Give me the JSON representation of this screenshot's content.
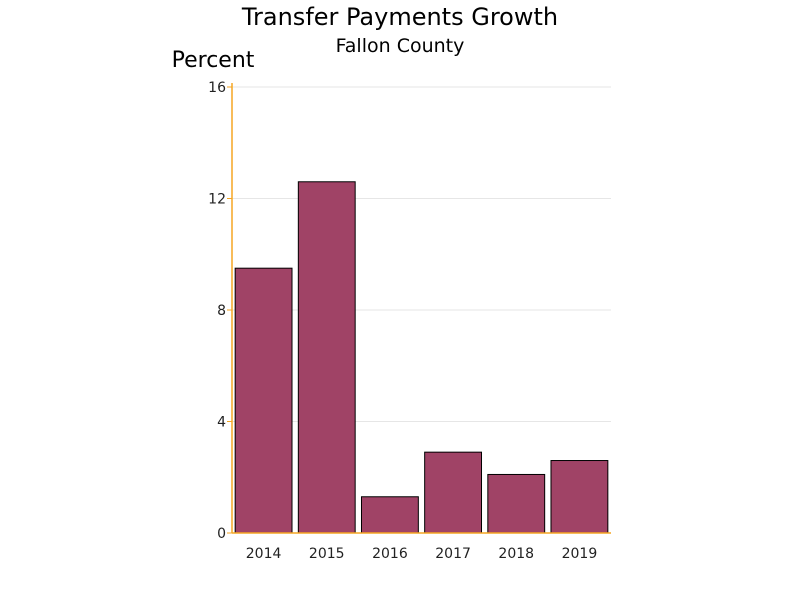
{
  "chart_data": {
    "type": "bar",
    "title": "Transfer Payments Growth",
    "subtitle": "Fallon County",
    "ylabel": "Percent",
    "xlabel": "",
    "categories": [
      "2014",
      "2015",
      "2016",
      "2017",
      "2018",
      "2019"
    ],
    "values": [
      9.5,
      12.6,
      1.3,
      2.9,
      2.1,
      2.6
    ],
    "ylim": [
      0,
      16
    ],
    "yticks": [
      "0",
      "4",
      "8",
      "12",
      "16"
    ],
    "grid": true,
    "legend": "none",
    "colors": {
      "bar": "#a04366",
      "bar_outline": "#000000",
      "axis": "#f5a623",
      "grid": "#e6e6e6"
    }
  }
}
